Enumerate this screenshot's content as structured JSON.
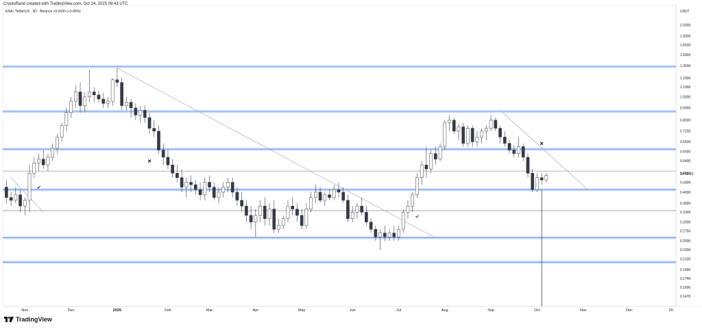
{
  "header": {
    "caption": "CryptoRand created with TradingView.com, Oct 24, 2025 09:43 UTC",
    "symbol_line": "ENA / TetherUS · 3D · Binance  +0.0190 (+3.96%)"
  },
  "footer": {
    "brand": "TradingView"
  },
  "axis": {
    "currency": "USDT",
    "countdown": "14:16:50"
  },
  "colors": {
    "bull_fill": "#ffffff",
    "bear_fill": "#363a45",
    "candle_outline": "#363a45",
    "zone_line": "#2962ff",
    "zone_band": "#bbd5f5",
    "gray_line": "#9598a1",
    "trendline": "#a9abb3",
    "cursor": "#434651"
  },
  "chart_data": {
    "type": "candlestick",
    "title": "ENA / TetherUS · 3D · Binance",
    "price_scale": "log",
    "ylim": [
      0.135,
      2.2
    ],
    "y_ticks": [
      "2.0000",
      "1.8000",
      "1.6500",
      "1.5000",
      "1.3500",
      "1.2000",
      "1.1000",
      "1.0000",
      "0.9000",
      "0.8000",
      "0.7200",
      "0.6500",
      "0.5900",
      "0.5400",
      "0.4800",
      "0.4400",
      "0.4000",
      "0.3600",
      "0.3300",
      "0.3000",
      "0.2750",
      "0.2500",
      "0.2300",
      "0.2100",
      "0.1900",
      "0.1740",
      "0.1600",
      "0.1470"
    ],
    "x_ticks": [
      {
        "label": "Nov",
        "bold": false,
        "bar": 4
      },
      {
        "label": "Dec",
        "bold": false,
        "bar": 14
      },
      {
        "label": "2025",
        "bold": true,
        "bar": 24
      },
      {
        "label": "Feb",
        "bold": false,
        "bar": 35
      },
      {
        "label": "Mar",
        "bold": false,
        "bar": 44
      },
      {
        "label": "Apr",
        "bold": false,
        "bar": 54
      },
      {
        "label": "May",
        "bold": false,
        "bar": 64
      },
      {
        "label": "Jun",
        "bold": false,
        "bar": 75
      },
      {
        "label": "Jul",
        "bold": false,
        "bar": 85
      },
      {
        "label": "Aug",
        "bold": false,
        "bar": 95
      },
      {
        "label": "Sep",
        "bold": false,
        "bar": 105
      },
      {
        "label": "Oct",
        "bold": false,
        "bar": 115
      },
      {
        "label": "Nov",
        "bold": false,
        "bar": 125
      },
      {
        "label": "Dec",
        "bold": false,
        "bar": 135
      },
      {
        "label": "20",
        "bold": false,
        "bar": 144
      }
    ],
    "bars_total": 145,
    "candles": [
      [
        0.42,
        0.45,
        0.36,
        0.38
      ],
      [
        0.38,
        0.4,
        0.35,
        0.37
      ],
      [
        0.37,
        0.42,
        0.36,
        0.39
      ],
      [
        0.39,
        0.41,
        0.33,
        0.35
      ],
      [
        0.35,
        0.38,
        0.32,
        0.37
      ],
      [
        0.37,
        0.52,
        0.33,
        0.48
      ],
      [
        0.48,
        0.56,
        0.46,
        0.53
      ],
      [
        0.53,
        0.58,
        0.49,
        0.55
      ],
      [
        0.55,
        0.6,
        0.5,
        0.52
      ],
      [
        0.52,
        0.58,
        0.49,
        0.56
      ],
      [
        0.56,
        0.64,
        0.54,
        0.61
      ],
      [
        0.61,
        0.7,
        0.58,
        0.68
      ],
      [
        0.68,
        0.78,
        0.65,
        0.76
      ],
      [
        0.76,
        0.9,
        0.72,
        0.86
      ],
      [
        0.86,
        1.0,
        0.82,
        0.96
      ],
      [
        0.96,
        1.12,
        0.9,
        1.05
      ],
      [
        1.05,
        1.15,
        0.86,
        0.92
      ],
      [
        0.92,
        1.05,
        0.86,
        1.0
      ],
      [
        1.0,
        1.3,
        0.95,
        1.05
      ],
      [
        1.05,
        1.1,
        0.95,
        1.02
      ],
      [
        1.02,
        1.06,
        0.95,
        0.98
      ],
      [
        0.98,
        1.04,
        0.9,
        0.94
      ],
      [
        0.94,
        1.0,
        0.9,
        0.96
      ],
      [
        0.96,
        1.2,
        0.92,
        1.18
      ],
      [
        1.18,
        1.32,
        1.1,
        1.15
      ],
      [
        1.15,
        1.2,
        0.88,
        0.92
      ],
      [
        0.92,
        1.0,
        0.88,
        0.95
      ],
      [
        0.95,
        0.98,
        0.82,
        0.9
      ],
      [
        0.9,
        0.94,
        0.8,
        0.84
      ],
      [
        0.84,
        0.92,
        0.78,
        0.88
      ],
      [
        0.88,
        0.92,
        0.78,
        0.82
      ],
      [
        0.82,
        0.86,
        0.7,
        0.74
      ],
      [
        0.74,
        0.8,
        0.68,
        0.72
      ],
      [
        0.72,
        0.76,
        0.58,
        0.6
      ],
      [
        0.6,
        0.64,
        0.52,
        0.56
      ],
      [
        0.56,
        0.6,
        0.5,
        0.52
      ],
      [
        0.52,
        0.55,
        0.46,
        0.48
      ],
      [
        0.48,
        0.52,
        0.44,
        0.46
      ],
      [
        0.46,
        0.5,
        0.4,
        0.42
      ],
      [
        0.42,
        0.46,
        0.38,
        0.44
      ],
      [
        0.44,
        0.47,
        0.4,
        0.43
      ],
      [
        0.43,
        0.45,
        0.39,
        0.41
      ],
      [
        0.41,
        0.44,
        0.37,
        0.39
      ],
      [
        0.39,
        0.46,
        0.37,
        0.44
      ],
      [
        0.44,
        0.47,
        0.4,
        0.42
      ],
      [
        0.42,
        0.44,
        0.37,
        0.38
      ],
      [
        0.38,
        0.42,
        0.36,
        0.4
      ],
      [
        0.4,
        0.44,
        0.38,
        0.42
      ],
      [
        0.42,
        0.46,
        0.4,
        0.44
      ],
      [
        0.44,
        0.46,
        0.38,
        0.4
      ],
      [
        0.4,
        0.42,
        0.35,
        0.37
      ],
      [
        0.37,
        0.4,
        0.33,
        0.35
      ],
      [
        0.35,
        0.37,
        0.3,
        0.32
      ],
      [
        0.32,
        0.35,
        0.28,
        0.3
      ],
      [
        0.3,
        0.34,
        0.26,
        0.32
      ],
      [
        0.32,
        0.37,
        0.3,
        0.35
      ],
      [
        0.35,
        0.38,
        0.29,
        0.31
      ],
      [
        0.31,
        0.36,
        0.29,
        0.34
      ],
      [
        0.34,
        0.37,
        0.27,
        0.28
      ],
      [
        0.28,
        0.31,
        0.27,
        0.29
      ],
      [
        0.29,
        0.32,
        0.28,
        0.31
      ],
      [
        0.31,
        0.37,
        0.3,
        0.35
      ],
      [
        0.35,
        0.38,
        0.32,
        0.34
      ],
      [
        0.34,
        0.36,
        0.3,
        0.32
      ],
      [
        0.32,
        0.34,
        0.28,
        0.29
      ],
      [
        0.29,
        0.36,
        0.28,
        0.34
      ],
      [
        0.34,
        0.4,
        0.33,
        0.38
      ],
      [
        0.38,
        0.43,
        0.36,
        0.4
      ],
      [
        0.4,
        0.42,
        0.36,
        0.37
      ],
      [
        0.37,
        0.4,
        0.35,
        0.39
      ],
      [
        0.39,
        0.41,
        0.37,
        0.38
      ],
      [
        0.38,
        0.43,
        0.37,
        0.41
      ],
      [
        0.41,
        0.44,
        0.38,
        0.4
      ],
      [
        0.4,
        0.42,
        0.36,
        0.37
      ],
      [
        0.37,
        0.39,
        0.3,
        0.31
      ],
      [
        0.31,
        0.35,
        0.3,
        0.33
      ],
      [
        0.33,
        0.36,
        0.31,
        0.35
      ],
      [
        0.35,
        0.38,
        0.32,
        0.33
      ],
      [
        0.33,
        0.35,
        0.29,
        0.3
      ],
      [
        0.3,
        0.31,
        0.27,
        0.28
      ],
      [
        0.28,
        0.29,
        0.25,
        0.26
      ],
      [
        0.26,
        0.28,
        0.23,
        0.27
      ],
      [
        0.27,
        0.29,
        0.25,
        0.26
      ],
      [
        0.26,
        0.28,
        0.25,
        0.27
      ],
      [
        0.27,
        0.29,
        0.25,
        0.26
      ],
      [
        0.26,
        0.29,
        0.25,
        0.28
      ],
      [
        0.28,
        0.34,
        0.27,
        0.33
      ],
      [
        0.33,
        0.37,
        0.31,
        0.35
      ],
      [
        0.35,
        0.4,
        0.33,
        0.39
      ],
      [
        0.39,
        0.48,
        0.38,
        0.46
      ],
      [
        0.46,
        0.54,
        0.43,
        0.52
      ],
      [
        0.52,
        0.62,
        0.46,
        0.5
      ],
      [
        0.5,
        0.6,
        0.48,
        0.58
      ],
      [
        0.58,
        0.62,
        0.52,
        0.55
      ],
      [
        0.55,
        0.64,
        0.54,
        0.62
      ],
      [
        0.62,
        0.8,
        0.6,
        0.78
      ],
      [
        0.78,
        0.84,
        0.72,
        0.8
      ],
      [
        0.8,
        0.82,
        0.7,
        0.72
      ],
      [
        0.72,
        0.77,
        0.66,
        0.75
      ],
      [
        0.75,
        0.78,
        0.62,
        0.64
      ],
      [
        0.64,
        0.76,
        0.62,
        0.74
      ],
      [
        0.74,
        0.76,
        0.62,
        0.65
      ],
      [
        0.65,
        0.72,
        0.62,
        0.68
      ],
      [
        0.68,
        0.74,
        0.64,
        0.72
      ],
      [
        0.72,
        0.76,
        0.66,
        0.74
      ],
      [
        0.74,
        0.84,
        0.72,
        0.8
      ],
      [
        0.8,
        0.82,
        0.72,
        0.74
      ],
      [
        0.74,
        0.76,
        0.64,
        0.68
      ],
      [
        0.68,
        0.72,
        0.62,
        0.64
      ],
      [
        0.64,
        0.66,
        0.58,
        0.6
      ],
      [
        0.6,
        0.63,
        0.56,
        0.58
      ],
      [
        0.58,
        0.68,
        0.56,
        0.62
      ],
      [
        0.62,
        0.64,
        0.54,
        0.56
      ],
      [
        0.56,
        0.58,
        0.46,
        0.48
      ],
      [
        0.48,
        0.5,
        0.4,
        0.41
      ],
      [
        0.41,
        0.48,
        0.4,
        0.46
      ],
      [
        0.46,
        0.48,
        0.43,
        0.45
      ],
      [
        0.45,
        0.48,
        0.44,
        0.47
      ]
    ],
    "candle_start_bar": 0,
    "horizontal_zones": [
      1.34,
      0.87,
      0.605,
      0.41,
      0.258,
      0.204
    ],
    "gray_levels": [
      0.49,
      0.335
    ],
    "trendlines": [
      {
        "from": [
          1,
          0.46
        ],
        "to": [
          8,
          0.33
        ]
      },
      {
        "from": [
          24,
          1.32
        ],
        "to": [
          93,
          0.258
        ]
      },
      {
        "from": [
          107,
          0.88
        ],
        "to": [
          126,
          0.41
        ]
      }
    ],
    "cursor_bar": 116,
    "marks": [
      {
        "type": "check",
        "bar": 7,
        "price": 0.42
      },
      {
        "type": "x",
        "bar": 31,
        "price": 0.54
      },
      {
        "type": "check",
        "bar": 89,
        "price": 0.317
      },
      {
        "type": "x",
        "bar": 116,
        "price": 0.64
      }
    ]
  }
}
